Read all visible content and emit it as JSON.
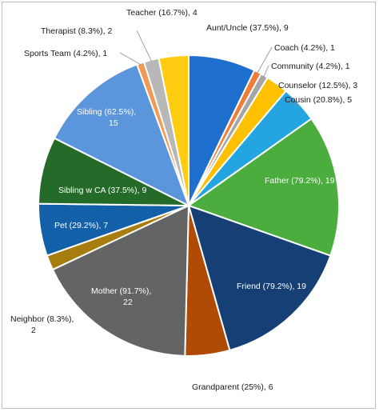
{
  "chart_data": {
    "type": "pie",
    "title": "",
    "slices": [
      {
        "name": "Aunt/Uncle",
        "percent": "37.5%",
        "value": 9,
        "color": "#1f6fcf"
      },
      {
        "name": "Coach",
        "percent": "4.2%",
        "value": 1,
        "color": "#f07c3a"
      },
      {
        "name": "Community",
        "percent": "4.2%",
        "value": 1,
        "color": "#a5a5a5"
      },
      {
        "name": "Counselor",
        "percent": "12.5%",
        "value": 3,
        "color": "#ffc000"
      },
      {
        "name": "Cousin",
        "percent": "20.8%",
        "value": 5,
        "color": "#24a4e0"
      },
      {
        "name": "Father",
        "percent": "79.2%",
        "value": 19,
        "color": "#4aad3e"
      },
      {
        "name": "Friend",
        "percent": "79.2%",
        "value": 19,
        "color": "#153f75"
      },
      {
        "name": "Grandparent",
        "percent": "25%",
        "value": 6,
        "color": "#b04a05"
      },
      {
        "name": "Mother",
        "percent": "91.7%",
        "value": 22,
        "color": "#646464"
      },
      {
        "name": "Neighbor",
        "percent": "8.3%",
        "value": 2,
        "color": "#a87d0f"
      },
      {
        "name": "Pet",
        "percent": "29.2%",
        "value": 7,
        "color": "#1260a8"
      },
      {
        "name": "Sibling w CA",
        "percent": "37.5%",
        "value": 9,
        "color": "#246b2a"
      },
      {
        "name": "Sibling",
        "percent": "62.5%",
        "value": 15,
        "color": "#5b95dc"
      },
      {
        "name": "Sports Team",
        "percent": "4.2%",
        "value": 1,
        "color": "#f29a55"
      },
      {
        "name": "Therapist",
        "percent": "8.3%",
        "value": 2,
        "color": "#b8b8b8"
      },
      {
        "name": "Teacher",
        "percent": "16.7%",
        "value": 4,
        "color": "#ffcc11"
      }
    ],
    "labels": [
      {
        "line1": "Aunt/Uncle (37.5%), 9"
      },
      {
        "line1": "Coach (4.2%), 1"
      },
      {
        "line1": "Community (4.2%), 1"
      },
      {
        "line1": "Counselor (12.5%), 3"
      },
      {
        "line1": "Cousin (20.8%), 5"
      },
      {
        "line1": "Father (79.2%), 19"
      },
      {
        "line1": "Friend (79.2%), 19"
      },
      {
        "line1": "Grandparent (25%), 6"
      },
      {
        "line1": "Mother (91.7%),",
        "line2": "22"
      },
      {
        "line1": "Neighbor  (8.3%),",
        "line2": "2"
      },
      {
        "line1": "Pet (29.2%), 7"
      },
      {
        "line1": "Sibling w CA (37.5%), 9"
      },
      {
        "line1": "Sibling (62.5%),",
        "line2": "15"
      },
      {
        "line1": "Sports Team (4.2%), 1"
      },
      {
        "line1": "Therapist (8.3%), 2"
      },
      {
        "line1": "Teacher (16.7%), 4"
      }
    ],
    "legend": "none"
  }
}
